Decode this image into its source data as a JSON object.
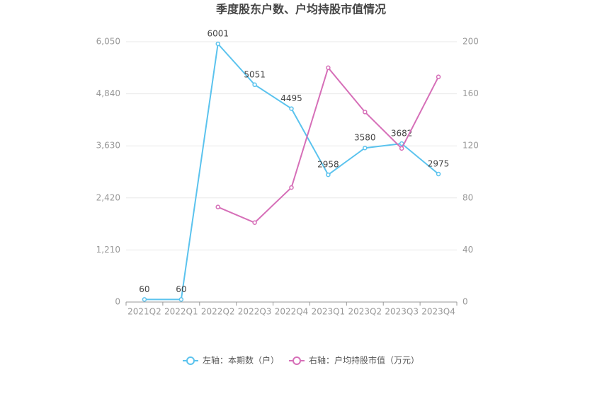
{
  "chart_data": {
    "type": "line",
    "title": "季度股东户数、户均持股市值情况",
    "categories": [
      "2021Q2",
      "2022Q1",
      "2022Q2",
      "2022Q3",
      "2022Q4",
      "2023Q1",
      "2023Q2",
      "2023Q3",
      "2023Q4"
    ],
    "series": [
      {
        "name": "左轴：本期数（户）",
        "color": "#5bc3ee",
        "axis": "y",
        "show_labels": true,
        "values": [
          60,
          60,
          6001,
          5051,
          4495,
          2958,
          3580,
          3682,
          2975
        ]
      },
      {
        "name": "右轴：户均持股市值（万元）",
        "color": "#d66fb8",
        "axis": "y2",
        "show_labels": false,
        "values": [
          null,
          null,
          73,
          61,
          88,
          180,
          146,
          118,
          173
        ]
      }
    ],
    "ylim": [
      0,
      6050
    ],
    "yticks": [
      0,
      {
        "value": 1210,
        "label": "1,210"
      },
      {
        "value": 2420,
        "label": "2,420"
      },
      {
        "value": 3630,
        "label": "3,630"
      },
      {
        "value": 4840,
        "label": "4,840"
      },
      {
        "value": 6050,
        "label": "6,050"
      }
    ],
    "y2lim": [
      0,
      200
    ],
    "y2ticks": [
      0,
      40,
      80,
      120,
      160,
      200
    ],
    "grid": true
  }
}
